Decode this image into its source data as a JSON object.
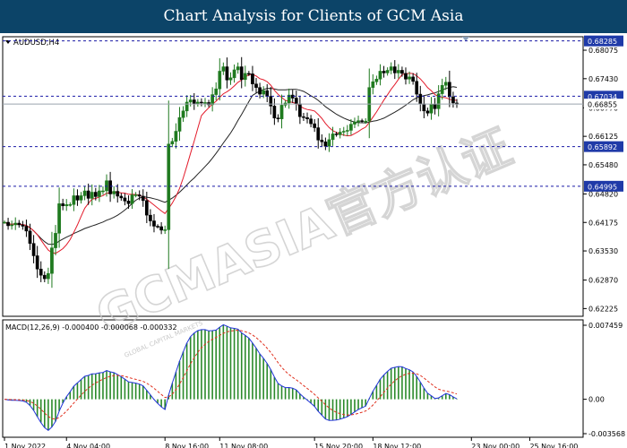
{
  "banner": {
    "title": "Chart Analysis for Clients of GCM Asia"
  },
  "chart_data": {
    "type": "candlestick",
    "symbol_label": "AUDUSD,H4",
    "watermark": "GCMASIA官方认证",
    "watermark_small": "GLOBAL CAPITAL MARKETS",
    "price_axis": {
      "range": [
        0.6205,
        0.6838
      ],
      "ticks": [
        "0.68075",
        "0.67430",
        "0.66770",
        "0.66125",
        "0.65480",
        "0.64820",
        "0.64175",
        "0.63530",
        "0.62870",
        "0.62225"
      ]
    },
    "levels": [
      {
        "label": "0.68285",
        "value": 0.68285,
        "color": "#1a1aa6"
      },
      {
        "label": "0.67034",
        "value": 0.67034,
        "color": "#1a1aa6"
      },
      {
        "label": "0.65892",
        "value": 0.65892,
        "color": "#1a1aa6"
      },
      {
        "label": "0.64995",
        "value": 0.64995,
        "color": "#1a1aa6"
      }
    ],
    "current_price": {
      "label": "0.66855",
      "value": 0.66855
    },
    "x_axis": {
      "labels": [
        "1 Nov 2022",
        "4 Nov 04:00",
        "8 Nov 16:00",
        "11 Nov 08:00",
        "15 Nov 20:00",
        "18 Nov 12:00",
        "23 Nov 00:00",
        "25 Nov 16:00"
      ],
      "label_index": [
        0,
        17,
        44,
        59,
        85,
        101,
        128,
        144
      ]
    },
    "colors": {
      "bull": "#1f7a1f",
      "bear": "#000000",
      "ma_fast": "#e31b2b",
      "ma_slow": "#222222",
      "macd_line": "#2133d9",
      "signal_line": "#e0301e",
      "hist": "#2a8a2a"
    },
    "close": [
      0.6418,
      0.641,
      0.6412,
      0.6416,
      0.6412,
      0.6409,
      0.6398,
      0.637,
      0.6342,
      0.6312,
      0.6298,
      0.629,
      0.6302,
      0.636,
      0.6393,
      0.646,
      0.6455,
      0.6458,
      0.6458,
      0.6478,
      0.6468,
      0.6478,
      0.6489,
      0.6472,
      0.6486,
      0.6476,
      0.6489,
      0.6489,
      0.6512,
      0.6482,
      0.6488,
      0.6477,
      0.6473,
      0.6466,
      0.646,
      0.648,
      0.648,
      0.6477,
      0.6467,
      0.6434,
      0.6421,
      0.6409,
      0.6408,
      0.64,
      0.6401,
      0.6595,
      0.6601,
      0.6624,
      0.6655,
      0.667,
      0.669,
      0.6695,
      0.6686,
      0.669,
      0.6688,
      0.6689,
      0.6684,
      0.6707,
      0.672,
      0.676,
      0.677,
      0.674,
      0.6745,
      0.6763,
      0.677,
      0.6741,
      0.6755,
      0.6754,
      0.6731,
      0.6723,
      0.6708,
      0.6716,
      0.6703,
      0.6681,
      0.6654,
      0.6652,
      0.6683,
      0.6688,
      0.6706,
      0.6699,
      0.6686,
      0.6657,
      0.6655,
      0.6652,
      0.6641,
      0.6632,
      0.6604,
      0.66,
      0.659,
      0.6605,
      0.6618,
      0.6616,
      0.6622,
      0.6624,
      0.6626,
      0.664,
      0.6645,
      0.6648,
      0.6647,
      0.6647,
      0.6723,
      0.6736,
      0.6742,
      0.676,
      0.6756,
      0.6762,
      0.677,
      0.6756,
      0.6762,
      0.6755,
      0.6742,
      0.6747,
      0.6737,
      0.6708,
      0.6686,
      0.667,
      0.6665,
      0.6685,
      0.6675,
      0.6709,
      0.6728,
      0.6735,
      0.6702,
      0.6688,
      0.6685
    ]
  },
  "macd": {
    "label": "MACD(12,26,9) -0.000400 -0.000068 -0.000332",
    "range": [
      -0.003568,
      0.007459
    ],
    "ticks": [
      "0.007459",
      "0.00",
      "-0.003568"
    ]
  }
}
